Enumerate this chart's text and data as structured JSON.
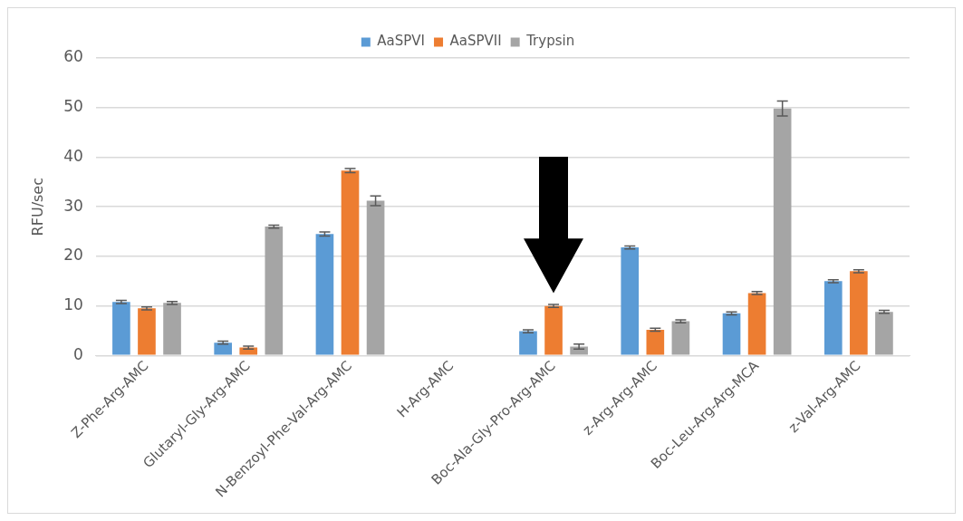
{
  "chart_data": {
    "type": "bar",
    "ylabel": "RFU/sec",
    "categories": [
      "Z-Phe-Arg-AMC",
      "Glutaryl-Gly-Arg-AMC",
      "N-Benzoyl-Phe-Val-Arg-AMC",
      "H-Arg-AMC",
      "Boc-Ala-Gly-Pro-Arg-AMC",
      "z-Arg-Arg-AMC",
      "Boc-Leu-Arg-Arg-MCA",
      "z-Val-Arg-AMC"
    ],
    "series": [
      {
        "name": "AaSPVI",
        "color": "#5b9bd5",
        "values": [
          10.8,
          2.6,
          24.5,
          0,
          4.9,
          21.8,
          8.5,
          15
        ],
        "errors": [
          0.3,
          0.3,
          0.4,
          null,
          0.3,
          0.3,
          0.3,
          0.3
        ]
      },
      {
        "name": "AaSPVII",
        "color": "#ed7d31",
        "values": [
          9.5,
          1.6,
          37.3,
          0,
          10,
          5.2,
          12.6,
          17
        ],
        "errors": [
          0.3,
          0.3,
          0.4,
          null,
          0.3,
          0.3,
          0.3,
          0.3
        ]
      },
      {
        "name": "Trypsin",
        "color": "#a5a5a5",
        "values": [
          10.6,
          26,
          31.2,
          0,
          1.8,
          6.9,
          49.8,
          8.8
        ],
        "errors": [
          0.3,
          0.3,
          1,
          null,
          0.5,
          0.3,
          1.5,
          0.3
        ]
      }
    ],
    "ylim": [
      0,
      60
    ],
    "yticks": [
      0,
      10,
      20,
      30,
      40,
      50,
      60
    ],
    "grid": "y",
    "legend": "top"
  }
}
